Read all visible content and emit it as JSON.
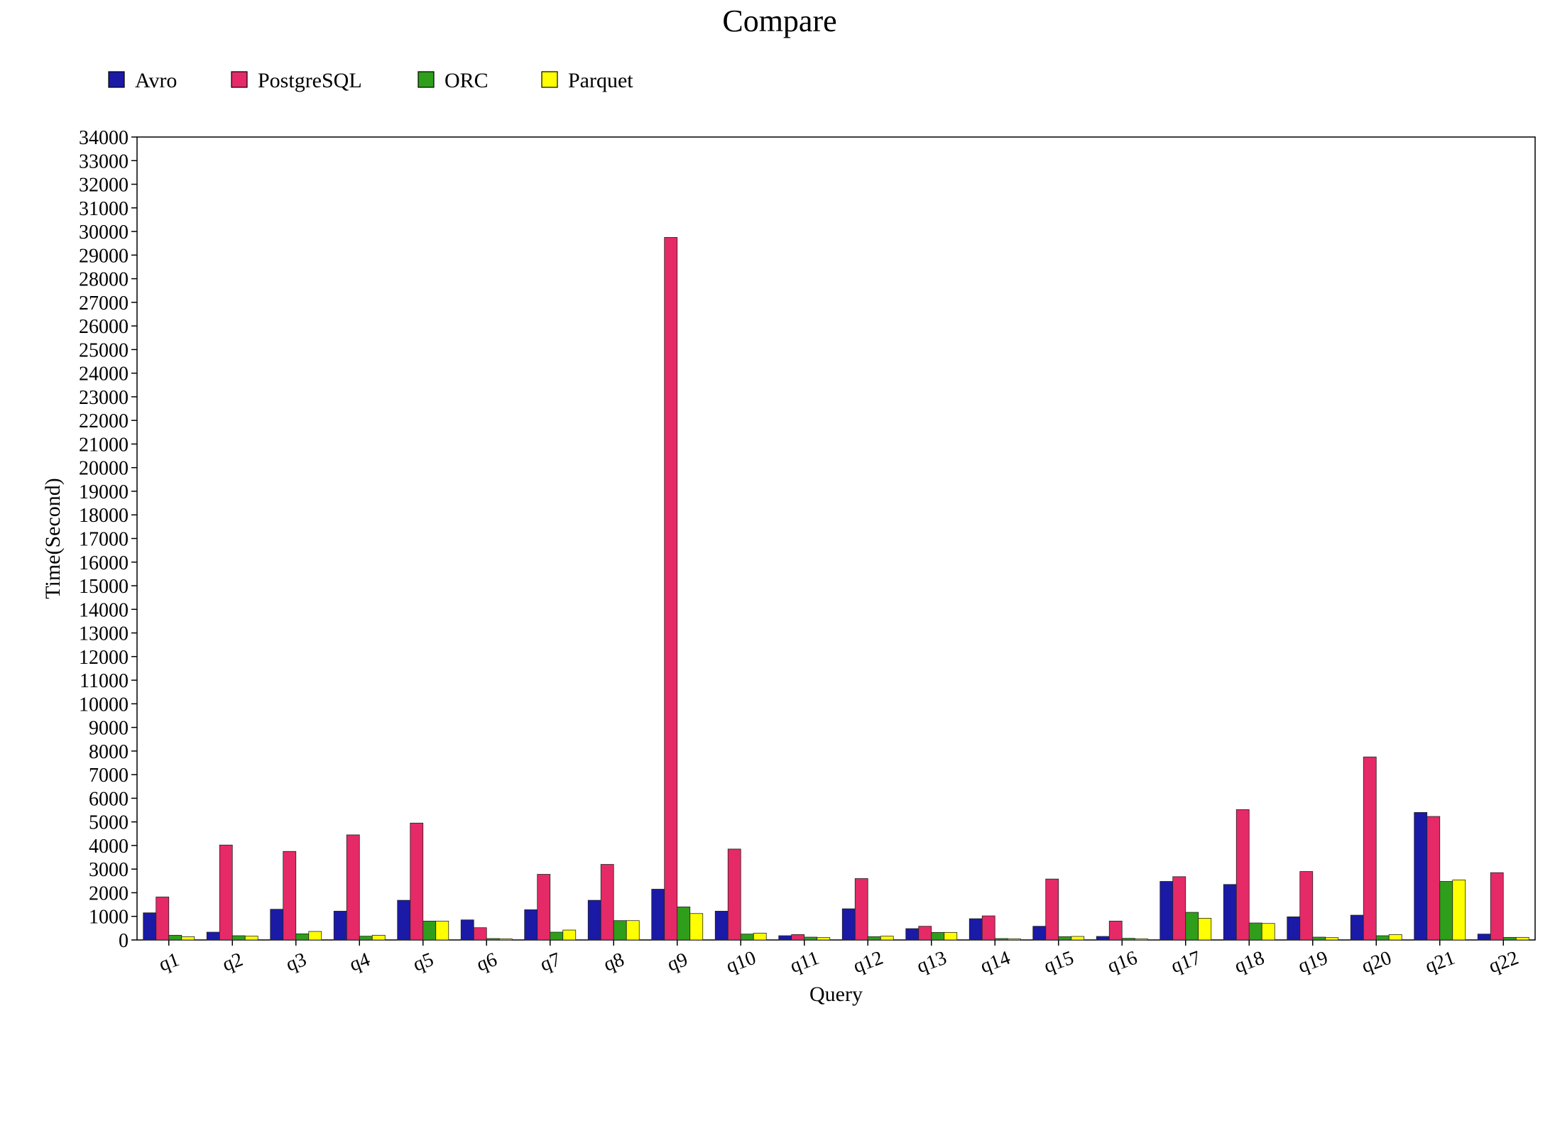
{
  "chart_data": {
    "type": "bar",
    "title": "Compare",
    "xlabel": "Query",
    "ylabel": "Time(Second)",
    "ylim": [
      0,
      34000
    ],
    "ytick_step": 1000,
    "grid": false,
    "legend_position": "top-left",
    "categories": [
      "q1",
      "q2",
      "q3",
      "q4",
      "q5",
      "q6",
      "q7",
      "q8",
      "q9",
      "q10",
      "q11",
      "q12",
      "q13",
      "q14",
      "q15",
      "q16",
      "q17",
      "q18",
      "q19",
      "q20",
      "q21",
      "q22"
    ],
    "series": [
      {
        "name": "Avro",
        "color": "#1a1aa6",
        "values": [
          1150,
          330,
          1300,
          1220,
          1680,
          850,
          1280,
          1680,
          2150,
          1220,
          180,
          1320,
          480,
          900,
          580,
          150,
          2480,
          2350,
          980,
          1050,
          5400,
          250
        ]
      },
      {
        "name": "PostgreSQL",
        "color": "#e52a67",
        "values": [
          1820,
          4020,
          3750,
          4450,
          4950,
          520,
          2780,
          3200,
          29750,
          3850,
          230,
          2600,
          580,
          1020,
          2580,
          800,
          2680,
          5520,
          2900,
          7750,
          5230,
          2850
        ]
      },
      {
        "name": "ORC",
        "color": "#2f9e1a",
        "values": [
          200,
          180,
          260,
          160,
          800,
          60,
          330,
          820,
          1400,
          250,
          120,
          140,
          320,
          60,
          140,
          70,
          1170,
          720,
          120,
          180,
          2480,
          110
        ]
      },
      {
        "name": "Parquet",
        "color": "#ffff00",
        "values": [
          140,
          160,
          360,
          200,
          800,
          50,
          420,
          820,
          1120,
          290,
          100,
          160,
          320,
          50,
          150,
          50,
          920,
          700,
          100,
          230,
          2540,
          110
        ]
      }
    ]
  }
}
